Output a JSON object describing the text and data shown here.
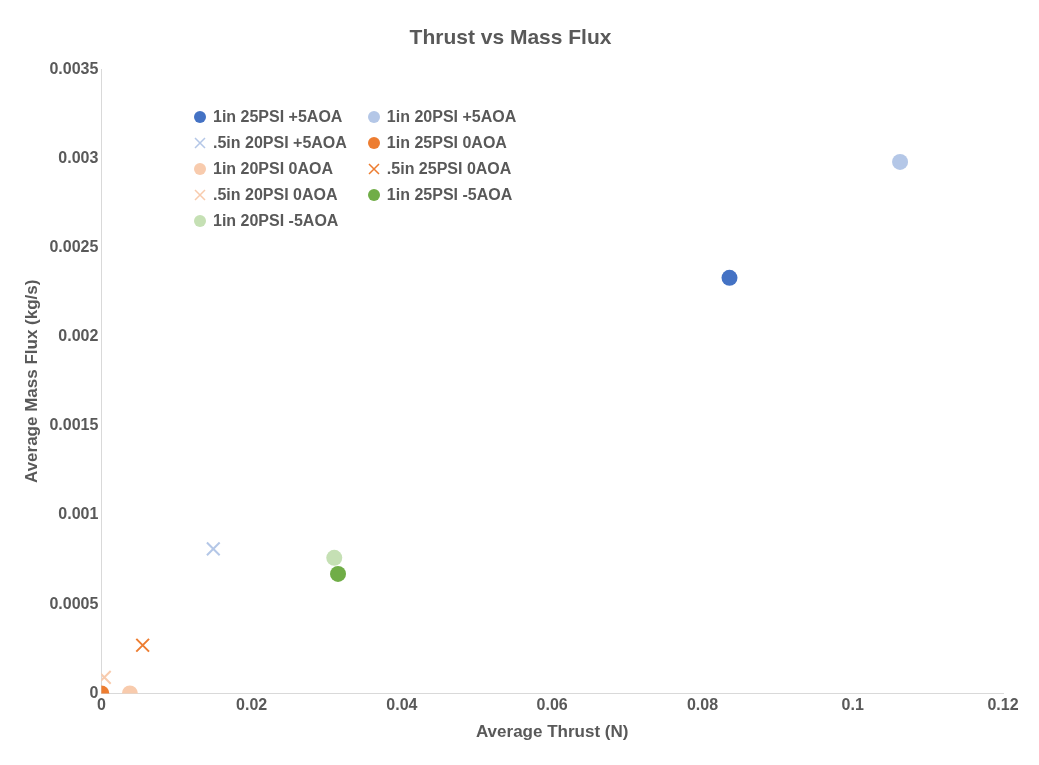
{
  "chart_data": {
    "type": "scatter",
    "title": "Thrust vs Mass Flux",
    "xlabel": "Average Thrust (N)",
    "ylabel": "Average Mass Flux (kg/s)",
    "xlim": [
      0,
      0.12
    ],
    "xticks": [
      0,
      0.02,
      0.04,
      0.06,
      0.08,
      0.1,
      0.12
    ],
    "ylim": [
      0,
      0.0035
    ],
    "yticks": [
      0,
      0.0005,
      0.001,
      0.0015,
      0.002,
      0.0025,
      0.003,
      0.0035
    ],
    "grid": false,
    "legend": "top left",
    "series": [
      {
        "name": "1in 25PSI +5AOA",
        "color": "#4472c4",
        "marker": "circle",
        "x": [
          0.0836
        ],
        "values": [
          0.00233
        ]
      },
      {
        "name": "1in 20PSI +5AOA",
        "color": "#b4c7e7",
        "marker": "circle",
        "x": [
          0.1063
        ],
        "values": [
          0.00298
        ]
      },
      {
        "name": ".5in 20PSI +5AOA",
        "color": "#b4c7e7",
        "marker": "cross",
        "x": [
          0.0149
        ],
        "values": [
          0.00081
        ]
      },
      {
        "name": "1in 25PSI 0AOA",
        "color": "#ed7d31",
        "marker": "circle",
        "x": [
          0
        ],
        "values": [
          0
        ]
      },
      {
        "name": "1in 20PSI 0AOA",
        "color": "#f8cbad",
        "marker": "circle",
        "x": [
          0.0038
        ],
        "values": [
          0
        ]
      },
      {
        "name": ".5in 25PSI 0AOA",
        "color": "#ed7d31",
        "marker": "cross",
        "x": [
          0.0055
        ],
        "values": [
          0.00027
        ]
      },
      {
        "name": ".5in 20PSI 0AOA",
        "color": "#f8cbad",
        "marker": "cross",
        "x": [
          0.0004
        ],
        "values": [
          9e-05
        ]
      },
      {
        "name": "1in 25PSI -5AOA",
        "color": "#70ad47",
        "marker": "circle",
        "x": [
          0.0315
        ],
        "values": [
          0.00067
        ]
      },
      {
        "name": "1in 20PSI -5AOA",
        "color": "#c5e0b4",
        "marker": "circle",
        "x": [
          0.031
        ],
        "values": [
          0.00076
        ]
      }
    ]
  }
}
